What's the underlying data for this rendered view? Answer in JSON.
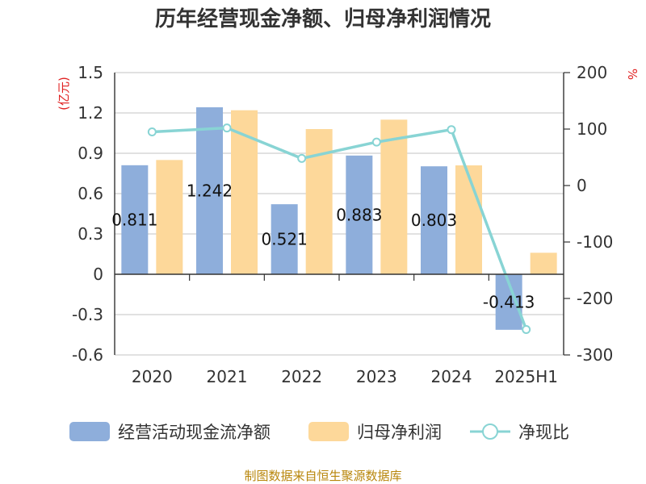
{
  "chart_data": {
    "type": "bar",
    "title": "历年经营现金净额、归母净利润情况",
    "categories": [
      "2020",
      "2021",
      "2022",
      "2023",
      "2024",
      "2025H1"
    ],
    "left_axis": {
      "unit": "(亿元)",
      "min": -0.6,
      "max": 1.5,
      "ticks": [
        -0.6,
        -0.3,
        0,
        0.3,
        0.6,
        0.9,
        1.2,
        1.5
      ],
      "tick_labels": [
        "-0.6",
        "-0.3",
        "0",
        "0.3",
        "0.6",
        "0.9",
        "1.2",
        "1.5"
      ]
    },
    "right_axis": {
      "unit": "%",
      "min": -300,
      "max": 200,
      "ticks": [
        -300,
        -200,
        -100,
        0,
        100,
        200
      ],
      "tick_labels": [
        "-300",
        "-200",
        "-100",
        "0",
        "100",
        "200"
      ]
    },
    "series": [
      {
        "name": "经营活动现金流净额",
        "type": "bar",
        "axis": "left",
        "color": "#8eaedb",
        "values": [
          0.811,
          1.242,
          0.521,
          0.883,
          0.803,
          -0.413
        ],
        "labels": [
          "0.811",
          "1.242",
          "0.521",
          "0.883",
          "0.803",
          "-0.413"
        ]
      },
      {
        "name": "归母净利润",
        "type": "bar",
        "axis": "left",
        "color": "#fdd89a",
        "values": [
          0.85,
          1.22,
          1.08,
          1.15,
          0.81,
          0.16
        ]
      },
      {
        "name": "净现比",
        "type": "line",
        "axis": "right",
        "color": "#88d4d4",
        "values": [
          95,
          102,
          48,
          77,
          99,
          -255
        ]
      }
    ],
    "grid": true,
    "legend": "bottom"
  },
  "footer": {
    "source": "制图数据来自恒生聚源数据库"
  }
}
